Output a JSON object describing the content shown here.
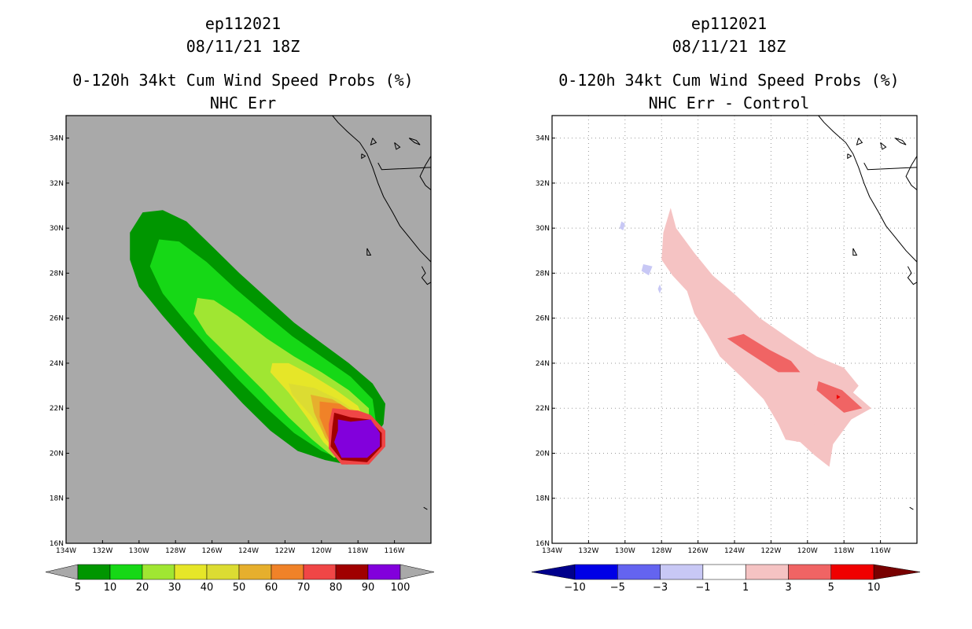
{
  "colors": {
    "land": "#a9a9a9",
    "ocean": "#ffffff",
    "coast": "#000000"
  },
  "chart_data": [
    {
      "type": "heatmap",
      "title_lines": [
        "ep112021",
        "08/11/21 18Z",
        "0-120h 34kt Cum Wind Speed Probs (%)",
        "NHC Err"
      ],
      "xlabel": "",
      "ylabel": "",
      "lon_range": [
        -134,
        -114
      ],
      "lat_range": [
        16,
        35
      ],
      "x_ticks": [
        "134W",
        "132W",
        "130W",
        "128W",
        "126W",
        "124W",
        "122W",
        "120W",
        "118W",
        "116W"
      ],
      "y_ticks": [
        "16N",
        "18N",
        "20N",
        "22N",
        "24N",
        "26N",
        "28N",
        "30N",
        "32N",
        "34N"
      ],
      "grid": false,
      "background": "#a9a9a9",
      "contour_levels": [
        5,
        10,
        20,
        30,
        40,
        50,
        60,
        70,
        80,
        90,
        100
      ],
      "level_colors": [
        "#009600",
        "#16d816",
        "#a0e632",
        "#e6e628",
        "#dcdc32",
        "#e6af2d",
        "#f08228",
        "#f04646",
        "#a00000",
        "#8200dc"
      ],
      "colorbar_labels": [
        "5",
        "10",
        "20",
        "30",
        "40",
        "50",
        "60",
        "70",
        "80",
        "90",
        "100"
      ],
      "contours": [
        {
          "level": 5,
          "points": [
            [
              -129.8,
              30.7
            ],
            [
              -128.7,
              30.8
            ],
            [
              -127.4,
              30.3
            ],
            [
              -126.0,
              29.2
            ],
            [
              -124.5,
              28.0
            ],
            [
              -123.0,
              26.9
            ],
            [
              -121.5,
              25.8
            ],
            [
              -120.0,
              24.9
            ],
            [
              -118.5,
              24.0
            ],
            [
              -117.2,
              23.1
            ],
            [
              -116.5,
              22.2
            ],
            [
              -116.6,
              21.3
            ],
            [
              -117.4,
              20.3
            ],
            [
              -118.6,
              19.5
            ],
            [
              -119.8,
              19.7
            ],
            [
              -121.3,
              20.1
            ],
            [
              -122.8,
              21.0
            ],
            [
              -124.3,
              22.2
            ],
            [
              -125.8,
              23.5
            ],
            [
              -127.3,
              24.8
            ],
            [
              -128.7,
              26.1
            ],
            [
              -130.0,
              27.4
            ],
            [
              -130.5,
              28.6
            ],
            [
              -130.5,
              29.8
            ]
          ]
        },
        {
          "level": 10,
          "points": [
            [
              -128.9,
              29.5
            ],
            [
              -127.8,
              29.4
            ],
            [
              -126.3,
              28.5
            ],
            [
              -124.7,
              27.3
            ],
            [
              -123.1,
              26.2
            ],
            [
              -121.6,
              25.2
            ],
            [
              -120.0,
              24.3
            ],
            [
              -118.4,
              23.4
            ],
            [
              -117.2,
              22.4
            ],
            [
              -117.0,
              21.3
            ],
            [
              -117.6,
              20.3
            ],
            [
              -118.8,
              19.7
            ],
            [
              -120.0,
              20.1
            ],
            [
              -121.5,
              20.9
            ],
            [
              -123.0,
              22.0
            ],
            [
              -124.6,
              23.3
            ],
            [
              -126.1,
              24.6
            ],
            [
              -127.5,
              25.9
            ],
            [
              -128.7,
              27.1
            ],
            [
              -129.4,
              28.3
            ]
          ]
        },
        {
          "level": 20,
          "points": [
            [
              -126.8,
              26.9
            ],
            [
              -125.9,
              26.8
            ],
            [
              -124.6,
              26.1
            ],
            [
              -123.0,
              25.1
            ],
            [
              -121.5,
              24.3
            ],
            [
              -120.0,
              23.6
            ],
            [
              -118.5,
              22.8
            ],
            [
              -117.4,
              22.0
            ],
            [
              -117.4,
              21.0
            ],
            [
              -118.3,
              20.1
            ],
            [
              -119.3,
              19.8
            ],
            [
              -120.5,
              20.6
            ],
            [
              -121.8,
              21.6
            ],
            [
              -123.2,
              22.8
            ],
            [
              -124.8,
              24.1
            ],
            [
              -126.3,
              25.3
            ],
            [
              -127.0,
              26.2
            ]
          ]
        },
        {
          "level": 30,
          "points": [
            [
              -122.7,
              24.0
            ],
            [
              -121.8,
              24.0
            ],
            [
              -120.6,
              23.5
            ],
            [
              -119.2,
              22.8
            ],
            [
              -118.0,
              22.1
            ],
            [
              -117.5,
              21.2
            ],
            [
              -118.0,
              20.3
            ],
            [
              -119.0,
              19.8
            ],
            [
              -119.9,
              20.5
            ],
            [
              -120.8,
              21.6
            ],
            [
              -121.8,
              22.7
            ],
            [
              -122.8,
              23.6
            ]
          ]
        },
        {
          "level": 40,
          "points": [
            [
              -121.8,
              23.1
            ],
            [
              -120.4,
              22.9
            ],
            [
              -119.1,
              22.4
            ],
            [
              -118.0,
              21.8
            ],
            [
              -117.5,
              21.0
            ],
            [
              -118.1,
              20.2
            ],
            [
              -119.0,
              19.9
            ],
            [
              -119.7,
              20.7
            ],
            [
              -120.6,
              21.7
            ],
            [
              -121.6,
              22.6
            ]
          ]
        },
        {
          "level": 50,
          "points": [
            [
              -120.6,
              22.6
            ],
            [
              -119.4,
              22.4
            ],
            [
              -118.2,
              21.8
            ],
            [
              -117.6,
              21.0
            ],
            [
              -118.2,
              20.2
            ],
            [
              -119.1,
              19.9
            ],
            [
              -119.8,
              20.7
            ],
            [
              -120.4,
              21.8
            ]
          ]
        },
        {
          "level": 60,
          "points": [
            [
              -120.1,
              22.3
            ],
            [
              -119.0,
              22.2
            ],
            [
              -118.0,
              21.7
            ],
            [
              -117.6,
              20.9
            ],
            [
              -118.3,
              20.1
            ],
            [
              -119.2,
              19.9
            ],
            [
              -119.7,
              20.8
            ],
            [
              -120.1,
              21.6
            ]
          ]
        },
        {
          "level": 70,
          "points": [
            [
              -119.4,
              22.0
            ],
            [
              -118.0,
              21.9
            ],
            [
              -117.3,
              21.7
            ],
            [
              -116.5,
              21.0
            ],
            [
              -116.5,
              20.3
            ],
            [
              -117.4,
              19.5
            ],
            [
              -118.9,
              19.5
            ],
            [
              -119.6,
              20.2
            ],
            [
              -119.6,
              21.3
            ]
          ]
        },
        {
          "level": 80,
          "points": [
            [
              -119.3,
              21.8
            ],
            [
              -118.4,
              21.6
            ],
            [
              -117.4,
              21.5
            ],
            [
              -116.7,
              20.9
            ],
            [
              -116.7,
              20.3
            ],
            [
              -117.5,
              19.6
            ],
            [
              -118.9,
              19.7
            ],
            [
              -119.5,
              20.3
            ],
            [
              -119.4,
              21.2
            ]
          ]
        },
        {
          "level": 90,
          "points": [
            [
              -119.1,
              21.5
            ],
            [
              -118.4,
              21.4
            ],
            [
              -117.3,
              21.5
            ],
            [
              -116.8,
              20.9
            ],
            [
              -116.8,
              20.3
            ],
            [
              -117.5,
              19.8
            ],
            [
              -118.9,
              19.8
            ],
            [
              -119.3,
              20.5
            ],
            [
              -119.1,
              21.0
            ]
          ]
        }
      ]
    },
    {
      "type": "heatmap",
      "title_lines": [
        "ep112021",
        "08/11/21 18Z",
        "0-120h 34kt Cum Wind Speed Probs (%)",
        "NHC Err - Control"
      ],
      "xlabel": "",
      "ylabel": "",
      "lon_range": [
        -134,
        -114
      ],
      "lat_range": [
        16,
        35
      ],
      "x_ticks": [
        "134W",
        "132W",
        "130W",
        "128W",
        "126W",
        "124W",
        "122W",
        "120W",
        "118W",
        "116W"
      ],
      "y_ticks": [
        "16N",
        "18N",
        "20N",
        "22N",
        "24N",
        "26N",
        "28N",
        "30N",
        "32N",
        "34N"
      ],
      "grid": true,
      "background": "#ffffff",
      "contour_levels": [
        -10,
        -5,
        -3,
        -1,
        1,
        3,
        5,
        10
      ],
      "level_colors": [
        "#00008c",
        "#0000e6",
        "#6464f0",
        "#c8c8f5",
        "#ffffff",
        "#f5c3c3",
        "#f06464",
        "#f00000",
        "#780000"
      ],
      "colorbar_labels": [
        "-10",
        "-5",
        "-3",
        "-1",
        "1",
        "3",
        "5",
        "10"
      ],
      "contours": [
        {
          "level": 1,
          "points": [
            [
              -127.5,
              30.9
            ],
            [
              -127.2,
              30.0
            ],
            [
              -126.2,
              28.9
            ],
            [
              -125.2,
              27.9
            ],
            [
              -123.9,
              27.0
            ],
            [
              -122.6,
              26.0
            ],
            [
              -121.0,
              25.1
            ],
            [
              -119.5,
              24.3
            ],
            [
              -118.0,
              23.8
            ],
            [
              -117.2,
              23.0
            ],
            [
              -117.5,
              22.7
            ],
            [
              -116.5,
              22.0
            ],
            [
              -117.6,
              21.5
            ],
            [
              -118.6,
              20.4
            ],
            [
              -118.8,
              19.4
            ],
            [
              -119.6,
              19.9
            ],
            [
              -120.4,
              20.5
            ],
            [
              -121.2,
              20.6
            ],
            [
              -121.6,
              21.3
            ],
            [
              -122.4,
              22.4
            ],
            [
              -123.5,
              23.3
            ],
            [
              -124.8,
              24.3
            ],
            [
              -125.5,
              25.3
            ],
            [
              -126.2,
              26.2
            ],
            [
              -126.6,
              27.2
            ],
            [
              -127.4,
              27.9
            ],
            [
              -128.0,
              28.6
            ],
            [
              -127.9,
              29.8
            ]
          ]
        },
        {
          "level": 1,
          "points": [
            [
              -119.7,
              21.4
            ],
            [
              -119.5,
              21.3
            ],
            [
              -119.6,
              21.2
            ]
          ]
        },
        {
          "level": 1,
          "points": [
            [
              -120.6,
              20.7
            ],
            [
              -120.3,
              20.6
            ],
            [
              -120.6,
              20.5
            ]
          ]
        },
        {
          "level": 3,
          "points": [
            [
              -124.4,
              25.1
            ],
            [
              -123.5,
              25.3
            ],
            [
              -122.1,
              24.6
            ],
            [
              -120.9,
              24.1
            ],
            [
              -120.4,
              23.6
            ],
            [
              -121.6,
              23.6
            ],
            [
              -123.3,
              24.5
            ]
          ]
        },
        {
          "level": 3,
          "points": [
            [
              -119.4,
              23.2
            ],
            [
              -118.1,
              22.8
            ],
            [
              -117.0,
              22.0
            ],
            [
              -118.0,
              21.8
            ],
            [
              -119.5,
              22.8
            ]
          ]
        },
        {
          "level": 5,
          "points": [
            [
              -118.4,
              22.6
            ],
            [
              -118.2,
              22.5
            ],
            [
              -118.4,
              22.4
            ]
          ]
        },
        {
          "level": -1,
          "points": [
            [
              -130.2,
              30.3
            ],
            [
              -130.0,
              30.2
            ],
            [
              -130.1,
              29.9
            ],
            [
              -130.3,
              30.0
            ]
          ]
        },
        {
          "level": -1,
          "points": [
            [
              -129.0,
              28.4
            ],
            [
              -128.5,
              28.3
            ],
            [
              -128.7,
              27.9
            ],
            [
              -129.1,
              28.1
            ]
          ]
        },
        {
          "level": -1,
          "points": [
            [
              -128.1,
              27.5
            ],
            [
              -128.0,
              27.3
            ],
            [
              -128.1,
              27.1
            ],
            [
              -128.2,
              27.3
            ]
          ]
        }
      ]
    }
  ]
}
